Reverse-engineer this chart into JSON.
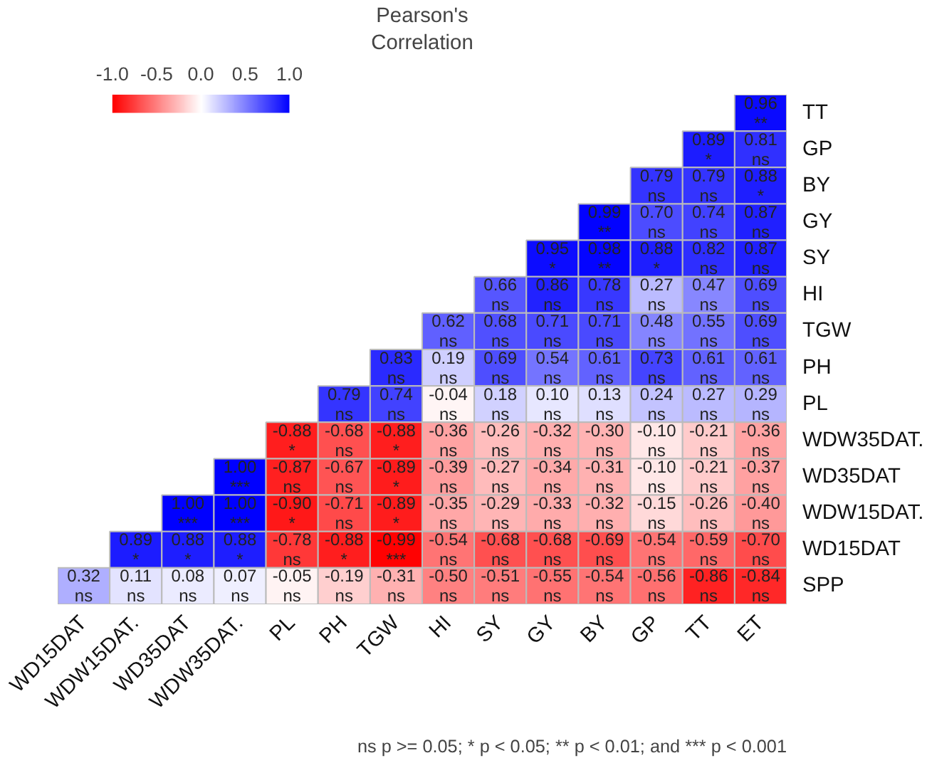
{
  "chart_data": {
    "type": "heatmap",
    "categories": [
      "WD15DAT",
      "WDW15DAT.",
      "WD35DAT",
      "WDW35DAT.",
      "PL",
      "PH",
      "TGW",
      "HI",
      "SY",
      "GY",
      "BY",
      "GP",
      "TT",
      "ET"
    ],
    "y_categories": [
      "TT",
      "GP",
      "BY",
      "GY",
      "SY",
      "HI",
      "TGW",
      "PH",
      "PL",
      "WDW35DAT.",
      "WD35DAT",
      "WDW15DAT.",
      "WD15DAT",
      "SPP"
    ],
    "cells": [
      [
        null,
        null,
        null,
        null,
        null,
        null,
        null,
        null,
        null,
        null,
        null,
        null,
        null,
        0.96
      ],
      [
        null,
        null,
        null,
        null,
        null,
        null,
        null,
        null,
        null,
        null,
        null,
        null,
        0.89,
        0.81
      ],
      [
        null,
        null,
        null,
        null,
        null,
        null,
        null,
        null,
        null,
        null,
        null,
        0.79,
        0.79,
        0.88
      ],
      [
        null,
        null,
        null,
        null,
        null,
        null,
        null,
        null,
        null,
        null,
        0.99,
        0.7,
        0.74,
        0.87
      ],
      [
        null,
        null,
        null,
        null,
        null,
        null,
        null,
        null,
        null,
        0.95,
        0.98,
        0.88,
        0.82,
        0.87
      ],
      [
        null,
        null,
        null,
        null,
        null,
        null,
        null,
        null,
        0.66,
        0.86,
        0.78,
        0.27,
        0.47,
        0.69
      ],
      [
        null,
        null,
        null,
        null,
        null,
        null,
        null,
        0.62,
        0.68,
        0.71,
        0.71,
        0.48,
        0.55,
        0.69
      ],
      [
        null,
        null,
        null,
        null,
        null,
        null,
        0.83,
        0.19,
        0.69,
        0.54,
        0.61,
        0.73,
        0.61,
        0.61
      ],
      [
        null,
        null,
        null,
        null,
        null,
        0.79,
        0.74,
        -0.04,
        0.18,
        0.1,
        0.13,
        0.24,
        0.27,
        0.29
      ],
      [
        null,
        null,
        null,
        null,
        -0.88,
        -0.68,
        -0.88,
        -0.36,
        -0.26,
        -0.32,
        -0.3,
        -0.1,
        -0.21,
        -0.36
      ],
      [
        null,
        null,
        null,
        1.0,
        -0.87,
        -0.67,
        -0.89,
        -0.39,
        -0.27,
        -0.34,
        -0.31,
        -0.1,
        -0.21,
        -0.37
      ],
      [
        null,
        null,
        1.0,
        1.0,
        -0.9,
        -0.71,
        -0.89,
        -0.35,
        -0.29,
        -0.33,
        -0.32,
        -0.15,
        -0.26,
        -0.4
      ],
      [
        null,
        0.89,
        0.88,
        0.88,
        -0.78,
        -0.88,
        -0.99,
        -0.54,
        -0.68,
        -0.68,
        -0.69,
        -0.54,
        -0.59,
        -0.7
      ],
      [
        0.32,
        0.11,
        0.08,
        0.07,
        -0.05,
        -0.19,
        -0.31,
        -0.5,
        -0.51,
        -0.55,
        -0.54,
        -0.56,
        -0.86,
        -0.84
      ]
    ],
    "cell_labels": [
      [
        null,
        null,
        null,
        null,
        null,
        null,
        null,
        null,
        null,
        null,
        null,
        null,
        null,
        "0.96\n**"
      ],
      [
        null,
        null,
        null,
        null,
        null,
        null,
        null,
        null,
        null,
        null,
        null,
        null,
        "0.89\n*",
        "0.81\nns"
      ],
      [
        null,
        null,
        null,
        null,
        null,
        null,
        null,
        null,
        null,
        null,
        null,
        "0.79\nns",
        "0.79\nns",
        "0.88\n*"
      ],
      [
        null,
        null,
        null,
        null,
        null,
        null,
        null,
        null,
        null,
        null,
        "0.99\n**",
        "0.70\nns",
        "0.74\nns",
        "0.87\nns"
      ],
      [
        null,
        null,
        null,
        null,
        null,
        null,
        null,
        null,
        null,
        "0.95\n*",
        "0.98\n**",
        "0.88\n*",
        "0.82\nns",
        "0.87\nns"
      ],
      [
        null,
        null,
        null,
        null,
        null,
        null,
        null,
        null,
        "0.66\nns",
        "0.86\nns",
        "0.78\nns",
        "0.27\nns",
        "0.47\nns",
        "0.69\nns"
      ],
      [
        null,
        null,
        null,
        null,
        null,
        null,
        null,
        "0.62\nns",
        "0.68\nns",
        "0.71\nns",
        "0.71\nns",
        "0.48\nns",
        "0.55\nns",
        "0.69\nns"
      ],
      [
        null,
        null,
        null,
        null,
        null,
        null,
        "0.83\nns",
        "0.19\nns",
        "0.69\nns",
        "0.54\nns",
        "0.61\nns",
        "0.73\nns",
        "0.61\nns",
        "0.61\nns"
      ],
      [
        null,
        null,
        null,
        null,
        null,
        "0.79\nns",
        "0.74\nns",
        "-0.04\nns",
        "0.18\nns",
        "0.10\nns",
        "0.13\nns",
        "0.24\nns",
        "0.27\nns",
        "0.29\nns"
      ],
      [
        null,
        null,
        null,
        null,
        "-0.88\n*",
        "-0.68\nns",
        "-0.88\n*",
        "-0.36\nns",
        "-0.26\nns",
        "-0.32\nns",
        "-0.30\nns",
        "-0.10\nns",
        "-0.21\nns",
        "-0.36\nns"
      ],
      [
        null,
        null,
        null,
        "1.00\n***",
        "-0.87\nns",
        "-0.67\nns",
        "-0.89\n*",
        "-0.39\nns",
        "-0.27\nns",
        "-0.34\nns",
        "-0.31\nns",
        "-0.10\nns",
        "-0.21\nns",
        "-0.37\nns"
      ],
      [
        null,
        null,
        "1.00\n***",
        "1.00\n***",
        "-0.90\n*",
        "-0.71\nns",
        "-0.89\n*",
        "-0.35\nns",
        "-0.29\nns",
        "-0.33\nns",
        "-0.32\nns",
        "-0.15\nns",
        "-0.26\nns",
        "-0.40\nns"
      ],
      [
        null,
        "0.89\n*",
        "0.88\n*",
        "0.88\n*",
        "-0.78\nns",
        "-0.88\n*",
        "-0.99\n***",
        "-0.54\nns",
        "-0.68\nns",
        "-0.68\nns",
        "-0.69\nns",
        "-0.54\nns",
        "-0.59\nns",
        "-0.70\nns"
      ],
      [
        "0.32\nns",
        "0.11\nns",
        "0.08\nns",
        "0.07\nns",
        "-0.05\nns",
        "-0.19\nns",
        "-0.31\nns",
        "-0.50\nns",
        "-0.51\nns",
        "-0.55\nns",
        "-0.54\nns",
        "-0.56\nns",
        "-0.86\nns",
        "-0.84\nns"
      ]
    ],
    "clim": [
      -1.0,
      1.0
    ],
    "cticks": [
      {
        "value": -1.0,
        "label": "-1.0"
      },
      {
        "value": -0.5,
        "label": "-0.5"
      },
      {
        "value": 0.0,
        "label": "0.0"
      },
      {
        "value": 0.5,
        "label": "0.5"
      },
      {
        "value": 1.0,
        "label": "1.0"
      }
    ],
    "clabel": "Pearson's\nCorrelation",
    "annotations": [
      "ns p >= 0.05; * p < 0.05; ** p < 0.01; and *** p < 0.001"
    ]
  }
}
